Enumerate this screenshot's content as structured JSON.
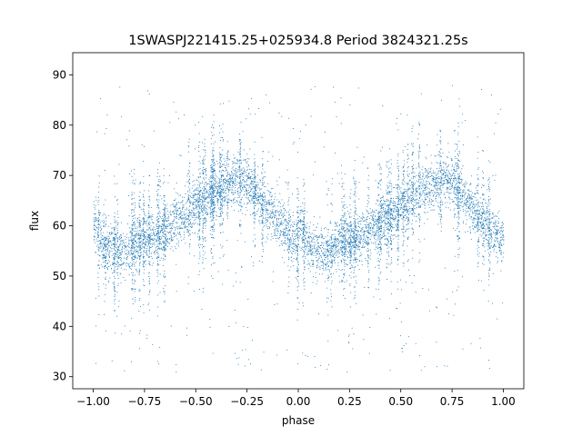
{
  "chart_data": {
    "type": "scatter",
    "title": "1SWASPJ221415.25+025934.8 Period 3824321.25s",
    "xlabel": "phase",
    "ylabel": "flux",
    "xlim": [
      -1.1,
      1.1
    ],
    "ylim": [
      27.6,
      94.4
    ],
    "xticks": [
      -1.0,
      -0.75,
      -0.5,
      -0.25,
      0.0,
      0.25,
      0.5,
      0.75,
      1.0
    ],
    "xtick_labels": [
      "−1.00",
      "−0.75",
      "−0.50",
      "−0.25",
      "0.00",
      "0.25",
      "0.50",
      "0.75",
      "1.00"
    ],
    "yticks": [
      30,
      40,
      50,
      60,
      70,
      80,
      90
    ],
    "ytick_labels": [
      "30",
      "40",
      "50",
      "60",
      "70",
      "80",
      "90"
    ],
    "grid": false,
    "marker_color": "#1f77b4",
    "phase_range": [
      -1.0,
      1.0
    ],
    "curve_profile": {
      "phase": [
        0.0,
        0.05,
        0.1,
        0.15,
        0.2,
        0.25,
        0.3,
        0.35,
        0.4,
        0.45,
        0.5,
        0.55,
        0.6,
        0.65,
        0.7,
        0.75,
        0.8,
        0.85,
        0.9,
        0.95,
        1.0
      ],
      "flux": [
        61,
        56,
        55,
        55,
        57,
        57,
        58,
        59,
        61,
        62,
        64,
        66,
        67,
        68,
        69,
        69,
        66,
        63,
        61,
        59,
        57
      ]
    },
    "band_scatter": 4.5,
    "outlier_range": [
      31,
      88
    ]
  }
}
